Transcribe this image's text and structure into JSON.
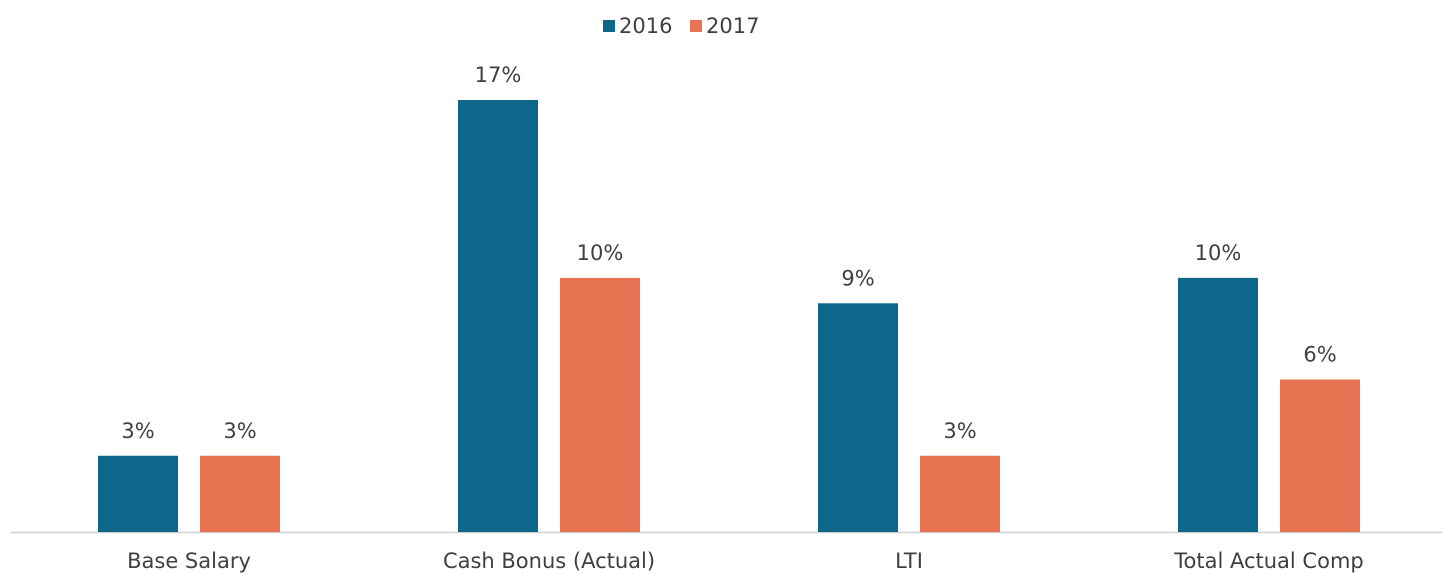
{
  "chart_data": {
    "type": "bar",
    "categories": [
      "Base Salary",
      "Cash Bonus (Actual)",
      "LTI",
      "Total Actual Comp"
    ],
    "series": [
      {
        "name": "2016",
        "color": "#0e668b",
        "values": [
          3,
          17,
          9,
          10
        ],
        "value_labels": [
          "3%",
          "17%",
          "9%",
          "10%"
        ]
      },
      {
        "name": "2017",
        "color": "#e87352",
        "values": [
          3,
          10,
          3,
          6
        ],
        "value_labels": [
          "3%",
          "10%",
          "3%",
          "6%"
        ]
      }
    ],
    "legend": "top"
  }
}
